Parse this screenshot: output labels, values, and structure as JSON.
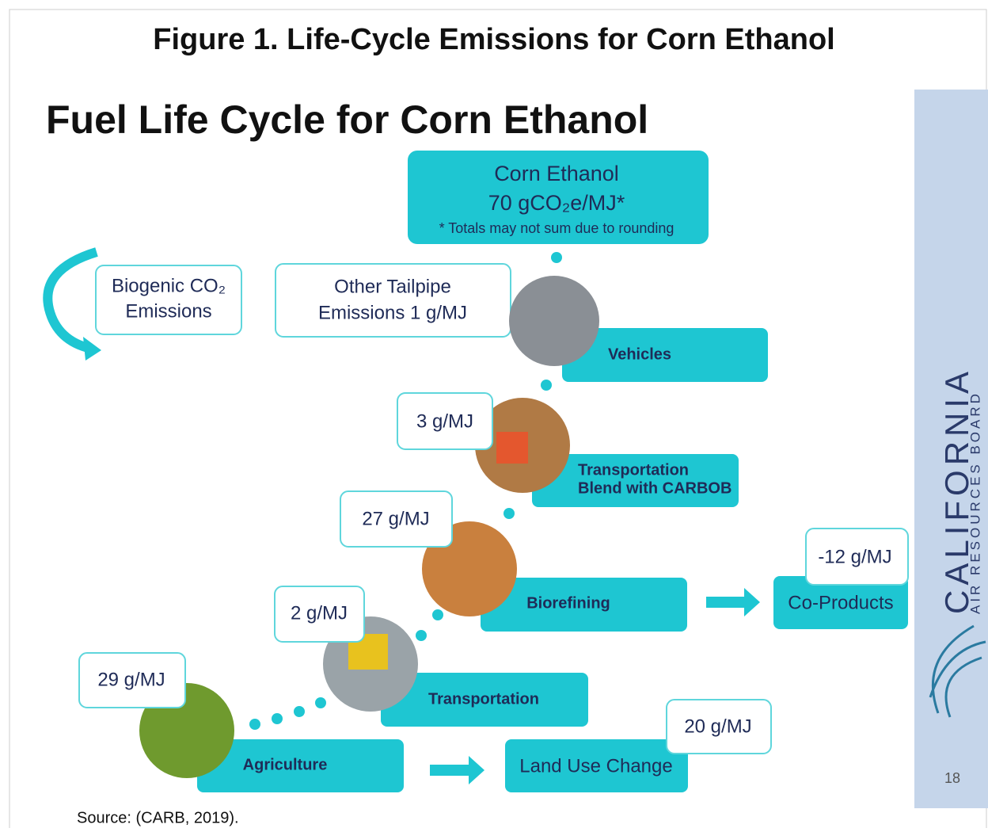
{
  "title": "Figure 1. Life-Cycle Emissions for Corn Ethanol",
  "slide": {
    "heading": "Fuel Life Cycle for Corn Ethanol",
    "total": {
      "name": "Corn Ethanol",
      "value": "70 gCO₂e/MJ*",
      "note": "* Totals may not sum due to rounding"
    },
    "biogenic": [
      "Biogenic CO₂",
      "Emissions"
    ],
    "tailpipe": [
      "Other Tailpipe",
      "Emissions 1 g/MJ"
    ],
    "stages": [
      {
        "name": [
          "Vehicles"
        ]
      },
      {
        "name": [
          "Transportation",
          "Blend with CARBOB"
        ],
        "emissions": "3 g/MJ"
      },
      {
        "name": [
          "Biorefining"
        ],
        "emissions": "27 g/MJ"
      },
      {
        "name": [
          "Transportation"
        ],
        "emissions": "2 g/MJ"
      },
      {
        "name": [
          "Agriculture"
        ],
        "emissions": "29 g/MJ"
      }
    ],
    "co_products": {
      "name": "Co-Products",
      "emissions": "-12 g/MJ"
    },
    "land_use": {
      "name": "Land Use Change",
      "emissions": "20 g/MJ"
    },
    "logo": {
      "name": "CALIFORNIA",
      "subtitle": "AIR RESOURCES BOARD"
    },
    "page_number": "18"
  },
  "source": "Source: (CARB, 2019)."
}
